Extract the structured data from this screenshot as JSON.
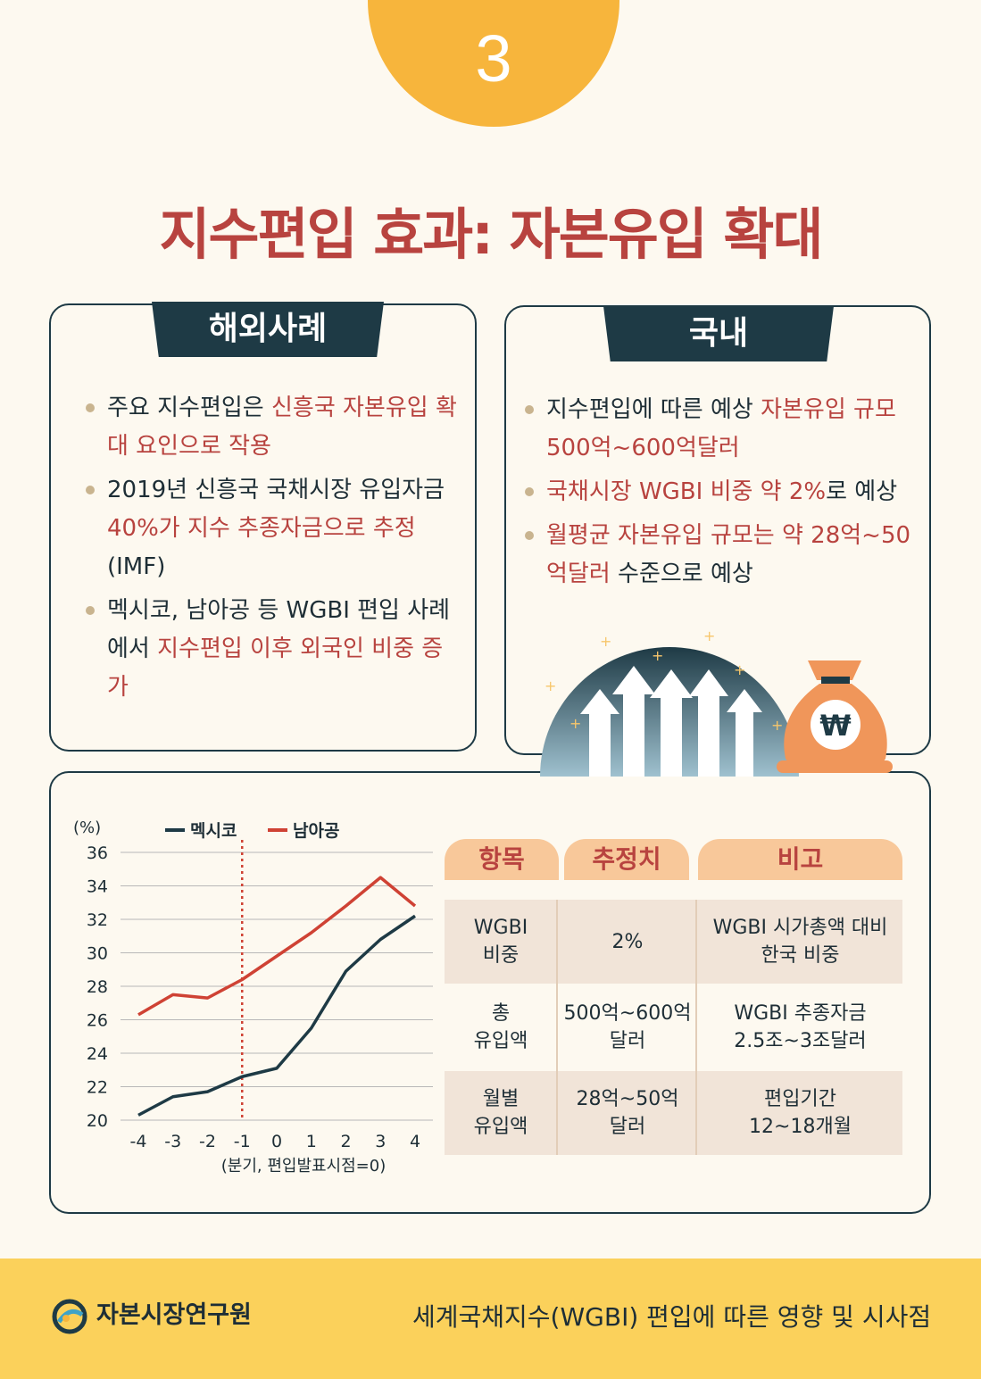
{
  "badge": {
    "number": "3"
  },
  "title": "지수편입 효과: 자본유입 확대",
  "overseas": {
    "heading": "해외사례",
    "bullets": [
      {
        "parts": [
          {
            "text": "주요 지수편입은 "
          },
          {
            "text": "신흥국 자본유입 확대 요인으로 작용",
            "highlight": true
          }
        ]
      },
      {
        "parts": [
          {
            "text": "2019년 신흥국 국채시장 유입자금 "
          },
          {
            "text": "40%가 지수 추종자금으로 추정",
            "highlight": true
          },
          {
            "text": "(IMF)"
          }
        ]
      },
      {
        "parts": [
          {
            "text": "멕시코, 남아공 등 WGBI 편입 사례에서 "
          },
          {
            "text": "지수편입 이후 외국인 비중 증가",
            "highlight": true
          }
        ]
      }
    ]
  },
  "domestic": {
    "heading": "국내",
    "bullets": [
      {
        "parts": [
          {
            "text": "지수편입에 따른 예상 "
          },
          {
            "text": "자본유입 규모 500억~600억달러",
            "highlight": true
          }
        ]
      },
      {
        "parts": [
          {
            "text": "국채시장 WGBI 비중 약 2%",
            "highlight": true
          },
          {
            "text": "로 예상"
          }
        ]
      },
      {
        "parts": [
          {
            "text": "월평균 자본유입 규모는 약 28억~50억달러",
            "highlight": true
          },
          {
            "text": " 수준으로 예상"
          }
        ]
      }
    ],
    "currency_symbol": "₩"
  },
  "chart_data": {
    "type": "line",
    "ylabel": "(%)",
    "xlabel": "(분기, 편입발표시점=0)",
    "x": [
      -4,
      -3,
      -2,
      -1,
      0,
      1,
      2,
      3,
      4
    ],
    "ylim": [
      20,
      36
    ],
    "yticks": [
      20,
      22,
      24,
      26,
      28,
      30,
      32,
      34,
      36
    ],
    "grid": true,
    "legend": "top",
    "marker_line_x": -1,
    "series": [
      {
        "name": "멕시코",
        "color": "#1e3a45",
        "values": [
          20.3,
          21.4,
          21.7,
          22.6,
          23.1,
          25.5,
          28.9,
          30.8,
          32.2
        ]
      },
      {
        "name": "남아공",
        "color": "#cf4234",
        "values": [
          26.3,
          27.5,
          27.3,
          28.4,
          29.8,
          31.2,
          32.8,
          34.5,
          32.8
        ]
      }
    ]
  },
  "table": {
    "headers": [
      "항목",
      "추정치",
      "비고"
    ],
    "rows": [
      {
        "item": "WGBI\n비중",
        "estimate": "2%",
        "note": "WGBI 시가총액 대비\n한국 비중"
      },
      {
        "item": "총\n유입액",
        "estimate": "500억~600억\n달러",
        "note": "WGBI 추종자금\n2.5조~3조달러"
      },
      {
        "item": "월별\n유입액",
        "estimate": "28억~50억\n달러",
        "note": "편입기간\n12~18개월"
      }
    ]
  },
  "footer": {
    "org": "자본시장연구원",
    "report": "세계국채지수(WGBI) 편입에 따른 영향 및 시사점"
  },
  "colors": {
    "accent_red": "#b8433f",
    "navy": "#1e3a45",
    "badge": "#f7b53c",
    "footer": "#fbd15b"
  }
}
